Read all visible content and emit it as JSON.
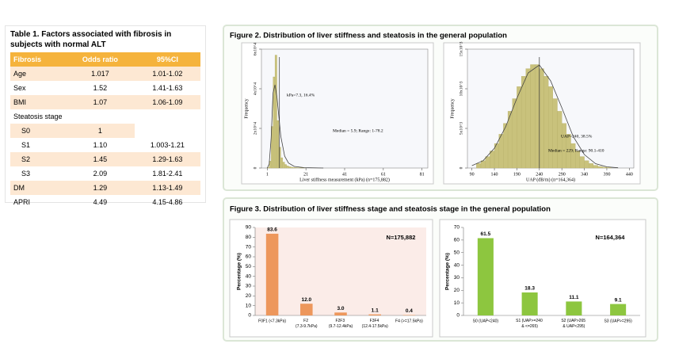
{
  "table": {
    "title": "Table 1. Factors associated with fibrosis in subjects with normal ALT",
    "header": [
      "Fibrosis",
      "Odds ratio",
      "95%CI"
    ],
    "rows": [
      [
        "Age",
        "1.017",
        "1.01-1.02"
      ],
      [
        "Sex",
        "1.52",
        "1.41-1.63"
      ],
      [
        "BMI",
        "1.07",
        "1.06-1.09"
      ],
      [
        "Steatosis stage"
      ],
      [
        "S0",
        "1"
      ],
      [
        "S1",
        "1.10",
        "1.003-1.21"
      ],
      [
        "S2",
        "1.45",
        "1.29-1.63"
      ],
      [
        "S3",
        "2.09",
        "1.81-2.41"
      ],
      [
        "DM",
        "1.29",
        "1.13-1.49"
      ],
      [
        "APRI",
        "4.49",
        "4.15-4.86"
      ]
    ]
  },
  "figures": [
    {
      "title": "Figure 2. Distribution of liver stiffness and steatosis in the general population"
    },
    {
      "title": "Figure 3. Distribution of liver stiffness stage and steatosis stage in the general population"
    }
  ],
  "chart_data": [
    {
      "type": "histogram",
      "x_label": "Liver stiffness measurement (kPa) (n=175,882)",
      "y_label": "Frequency",
      "color": "#c9c27c",
      "bins": [
        1,
        2,
        3,
        4,
        5,
        6,
        7,
        8,
        9,
        10,
        11,
        12,
        13,
        14,
        15,
        16,
        17,
        18,
        19,
        20,
        21
      ],
      "counts": [
        300,
        3500,
        21000,
        46000,
        57000,
        24000,
        10500,
        5200,
        3000,
        1800,
        1100,
        700,
        500,
        350,
        250,
        180,
        140,
        110,
        90,
        70
      ],
      "fit": {
        "x": [
          1,
          2,
          3,
          4,
          5,
          6,
          7,
          8,
          10,
          12,
          15,
          20,
          30
        ],
        "values": [
          0,
          2000,
          15000,
          38000,
          42000,
          36000,
          26000,
          16000,
          6000,
          2500,
          800,
          200,
          0
        ]
      },
      "ref_x": 7.3,
      "annotations": [
        "kPa=7.3, 16.4%",
        "Median = 5.9; Range: 1-78.2"
      ],
      "xlim": [
        -2,
        84
      ],
      "xticks": [
        1,
        21,
        41,
        61,
        81
      ],
      "ylim": [
        0,
        60000
      ],
      "yticks": [
        0,
        {
          "value": 20000,
          "label": "2x10^4"
        },
        {
          "value": 40000,
          "label": "4x10^4"
        },
        {
          "value": 60000,
          "label": "6x10^4"
        }
      ]
    },
    {
      "type": "histogram",
      "x_label": "UAP (dB/m) (n=164,364)",
      "y_label": "Frequency",
      "color": "#c9c27c",
      "bins": [
        100,
        110,
        120,
        130,
        140,
        150,
        160,
        170,
        180,
        190,
        200,
        210,
        220,
        230,
        240,
        250,
        260,
        270,
        280,
        290,
        300,
        310,
        320,
        330,
        340,
        350,
        360,
        370,
        380,
        390,
        400
      ],
      "counts": [
        577,
        931,
        1445,
        2151,
        3093,
        4263,
        5636,
        7162,
        8750,
        10268,
        11575,
        12540,
        13050,
        13050,
        12540,
        11575,
        10268,
        8750,
        7162,
        5636,
        4263,
        3093,
        2151,
        1445,
        931,
        577,
        343,
        196,
        107,
        56
      ],
      "fit": {
        "x": [
          90,
          115,
          140,
          165,
          190,
          215,
          240,
          265,
          290,
          315,
          340,
          365,
          390,
          415
        ],
        "values": [
          300,
          930,
          2500,
          5200,
          8800,
          12000,
          13000,
          11000,
          7600,
          4000,
          1700,
          550,
          150,
          30
        ]
      },
      "ref_x": 240,
      "annotations": [
        "UAP=240, 38.5%",
        "Median = 229; Range: 90.1-410"
      ],
      "xlim": [
        80,
        450
      ],
      "xticks": [
        90,
        140,
        190,
        240,
        290,
        340,
        390,
        440
      ],
      "ylim": [
        0,
        15000
      ],
      "yticks": [
        0,
        {
          "value": 5000,
          "label": "5x10^3"
        },
        {
          "value": 10000,
          "label": "10x10^3"
        },
        {
          "value": 15000,
          "label": "15x10^3"
        }
      ]
    },
    {
      "type": "bar",
      "y_label": "Percentage (%)",
      "color": "#ed975c",
      "background": "#fbece8",
      "annotation": "N=175,882",
      "categories": [
        "F0F1 (<7.3kPa)",
        "F2 (7.3-9.7kPa)",
        "F2F3 (9.7-12.4kPa)",
        "F3F4 (12.4-17.5kPa)",
        "F4 (>=17.5kPa)"
      ],
      "values": [
        83.6,
        12,
        3,
        1.1,
        0.4
      ],
      "value_labels": [
        "83.6",
        "12.0",
        "3.0",
        "1.1",
        "0.4"
      ],
      "ylim": [
        0,
        90
      ],
      "yticks": [
        0,
        10,
        20,
        30,
        40,
        50,
        60,
        70,
        80,
        90
      ]
    },
    {
      "type": "bar",
      "y_label": "Percentage (%)",
      "color": "#8dc63f",
      "background": "#ffffff",
      "annotation": "N=164,364",
      "categories": [
        "S0 (UAP<240)",
        "S1 (UAP>=240 & <=265)",
        "S2 (UAP>265 & UAP<295)",
        "S3 (UAP>=295)"
      ],
      "values": [
        61.5,
        18.3,
        11.1,
        9.1
      ],
      "ylim": [
        0,
        70
      ],
      "yticks": [
        0,
        10,
        20,
        30,
        40,
        50,
        60,
        70
      ]
    }
  ]
}
